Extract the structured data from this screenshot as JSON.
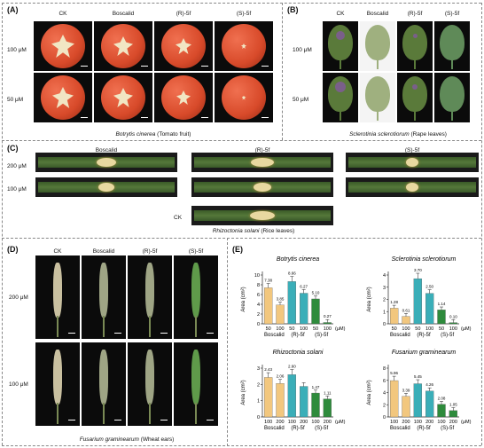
{
  "panels": {
    "A": {
      "label": "(A)",
      "cols": [
        "CK",
        "Boscalid",
        "(R)-5f",
        "(S)-5f"
      ],
      "rows": [
        "100 μM",
        "50 μM"
      ],
      "caption_species": "Botrytis cinerea",
      "caption_rest": "(Tomato fruit)"
    },
    "B": {
      "label": "(B)",
      "cols": [
        "CK",
        "Boscalid",
        "(R)-5f",
        "(S)-5f"
      ],
      "rows": [
        "100 μM",
        "50 μM"
      ],
      "caption_species": "Sclerotinia sclerotiorum",
      "caption_rest": "(Rape leaves)"
    },
    "C": {
      "label": "(C)",
      "cols": [
        "Boscalid",
        "(R)-5f",
        "(S)-5f"
      ],
      "rows": [
        "200 μM",
        "100 μM"
      ],
      "ck": "CK",
      "caption_species": "Rhizoctonia solani",
      "caption_rest": "(Rice leaves)"
    },
    "D": {
      "label": "(D)",
      "cols": [
        "CK",
        "Boscalid",
        "(R)-5f",
        "(S)-5f"
      ],
      "rows": [
        "200 μM",
        "100 μM"
      ],
      "caption_species": "Fusarium graminearum",
      "caption_rest": "(Wheat ears)"
    },
    "E": {
      "label": "(E)"
    }
  },
  "colors": {
    "boscalid": "#f2c77e",
    "r5f": "#3aaeb8",
    "s5f": "#2e8b3c",
    "tomato": "#d84a2a",
    "leaf": "#3f6b2e"
  },
  "chart_data": [
    {
      "type": "bar",
      "title": "Botrytis cinerea",
      "ylabel": "Area (cm²)",
      "ylim": [
        0,
        10
      ],
      "yticks": [
        0,
        2,
        4,
        6,
        8,
        10
      ],
      "tick_labels": [
        "50",
        "100",
        "50",
        "100",
        "50",
        "100"
      ],
      "groups": [
        "Boscalid",
        "(R)-5f",
        "(S)-5f"
      ],
      "unit": "(μM)",
      "values": [
        7.38,
        3.85,
        8.66,
        6.27,
        5.1,
        0.27
      ],
      "labels": [
        "7.38",
        "3.85",
        "8.66",
        "6.27",
        "5.10",
        "0.27"
      ]
    },
    {
      "type": "bar",
      "title": "Sclerotinia sclerotiorum",
      "ylabel": "Area (cm²)",
      "ylim": [
        0,
        4
      ],
      "yticks": [
        0,
        1,
        2,
        3,
        4
      ],
      "tick_labels": [
        "50",
        "100",
        "50",
        "100",
        "50",
        "100"
      ],
      "groups": [
        "Boscalid",
        "(R)-5f",
        "(S)-5f"
      ],
      "unit": "(μM)",
      "values": [
        1.28,
        0.61,
        3.7,
        2.5,
        1.14,
        0.1
      ],
      "labels": [
        "1.28",
        "0.61",
        "3.70",
        "2.50",
        "1.14",
        "0.10"
      ]
    },
    {
      "type": "bar",
      "title": "Rhizoctonia solani",
      "ylabel": "Area (cm²)",
      "ylim": [
        0,
        3
      ],
      "yticks": [
        0,
        1,
        2,
        3
      ],
      "tick_labels": [
        "100",
        "200",
        "100",
        "200",
        "100",
        "200"
      ],
      "groups": [
        "Boscalid",
        "(R)-5f",
        "(S)-5f"
      ],
      "unit": "(μM)",
      "values": [
        2.43,
        2.06,
        2.6,
        1.88,
        1.47,
        1.11
      ],
      "labels": [
        "2.43",
        "2.06",
        "2.60",
        "",
        "1.47",
        "1.11"
      ]
    },
    {
      "type": "bar",
      "title": "Fusarium graminearum",
      "ylabel": "Area (cm²)",
      "ylim": [
        0,
        8
      ],
      "yticks": [
        0,
        2,
        4,
        6,
        8
      ],
      "tick_labels": [
        "100",
        "200",
        "100",
        "200",
        "100",
        "200"
      ],
      "groups": [
        "Boscalid",
        "(R)-5f",
        "(S)-5f"
      ],
      "unit": "(μM)",
      "values": [
        5.96,
        3.39,
        5.45,
        4.26,
        2.08,
        1.05
      ],
      "labels": [
        "5.96",
        "3.39",
        "5.45",
        "4.26",
        "2.08",
        "1.05"
      ]
    }
  ]
}
